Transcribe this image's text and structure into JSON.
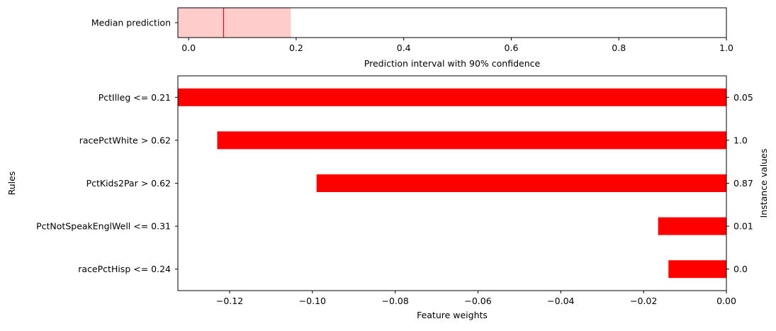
{
  "chart_data": [
    {
      "type": "bar",
      "orientation": "horizontal",
      "title": "",
      "categories": [
        "Median prediction"
      ],
      "median": 0.065,
      "interval": [
        -0.02,
        0.19
      ],
      "xlabel": "Prediction interval with 90% confidence",
      "xlim": [
        -0.02,
        1.0
      ],
      "xticks": [
        0.0,
        0.2,
        0.4,
        0.6,
        0.8,
        1.0
      ],
      "xtick_labels": [
        "0.0",
        "0.2",
        "0.4",
        "0.6",
        "0.8",
        "1.0"
      ],
      "colors": {
        "interval": "#ffcccc",
        "median": "#ff0000"
      },
      "grid": false
    },
    {
      "type": "bar",
      "orientation": "horizontal",
      "title": "",
      "categories": [
        "PctIlleg <= 0.21",
        "racePctWhite > 0.62",
        "PctKids2Par > 0.62",
        "PctNotSpeakEnglWell <= 0.31",
        "racePctHisp <= 0.24"
      ],
      "series": [
        {
          "values": [
            -0.133,
            -0.123,
            -0.099,
            -0.0165,
            -0.014
          ]
        }
      ],
      "instance_values": [
        "0.05",
        "1.0",
        "0.87",
        "0.01",
        "0.0"
      ],
      "xlabel": "Feature weights",
      "ylabel": "Rules",
      "y2label": "Instance values",
      "xlim": [
        -0.1325,
        0.0
      ],
      "xticks": [
        -0.12,
        -0.1,
        -0.08,
        -0.06,
        -0.04,
        -0.02,
        0.0
      ],
      "xtick_labels": [
        "−0.12",
        "−0.10",
        "−0.08",
        "−0.06",
        "−0.04",
        "−0.02",
        "0.00"
      ],
      "colors": {
        "bar": "#ff0000"
      },
      "grid": false
    }
  ]
}
